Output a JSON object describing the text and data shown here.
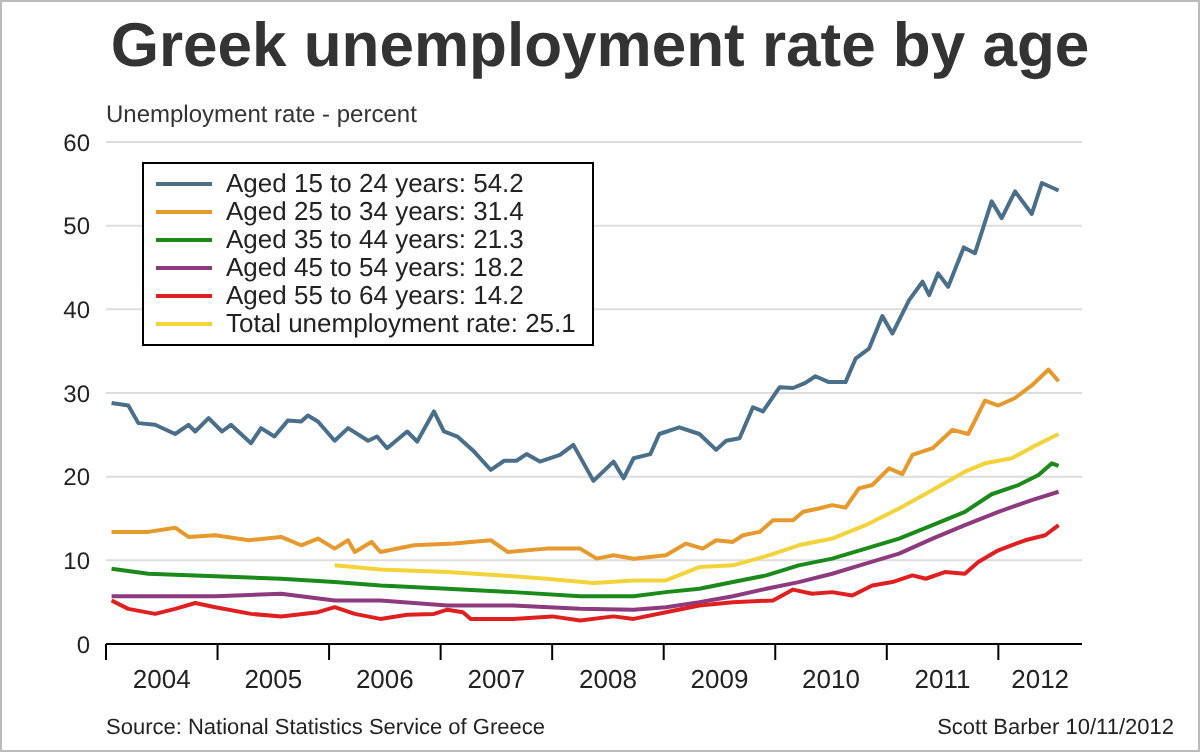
{
  "chart_data": {
    "type": "line",
    "title": "Greek unemployment rate by age",
    "ylabel": "Unemployment rate - percent",
    "xlim": [
      2004,
      2012.75
    ],
    "xticks": [
      {
        "value": 2004,
        "label": null
      },
      {
        "value": 2005,
        "label": null
      },
      {
        "value": 2006,
        "label": null
      },
      {
        "value": 2007,
        "label": null
      },
      {
        "value": 2008,
        "label": null
      },
      {
        "value": 2009,
        "label": null
      },
      {
        "value": 2010,
        "label": null
      },
      {
        "value": 2011,
        "label": null
      },
      {
        "value": 2012,
        "label": null
      },
      {
        "value": 2004.5,
        "label": "2004"
      },
      {
        "value": 2005.5,
        "label": "2005"
      },
      {
        "value": 2006.5,
        "label": "2006"
      },
      {
        "value": 2007.5,
        "label": "2007"
      },
      {
        "value": 2008.5,
        "label": "2008"
      },
      {
        "value": 2009.5,
        "label": "2009"
      },
      {
        "value": 2010.5,
        "label": "2010"
      },
      {
        "value": 2011.5,
        "label": "2011"
      },
      {
        "value": 2012.375,
        "label": "2012"
      }
    ],
    "ylim": [
      0,
      60
    ],
    "yticks": [
      0,
      10,
      20,
      30,
      40,
      50,
      60
    ],
    "grid": "y",
    "legend": "top left",
    "marker": "none",
    "line_style": "solid",
    "series": [
      {
        "name": "Aged 15 to 24 years: 54.2",
        "color": "#4a6f8a",
        "x": [
          2004.05,
          2004.2,
          2004.29,
          2004.44,
          2004.62,
          2004.74,
          2004.8,
          2004.92,
          2005.04,
          2005.12,
          2005.3,
          2005.39,
          2005.51,
          2005.63,
          2005.75,
          2005.81,
          2005.9,
          2006.05,
          2006.17,
          2006.35,
          2006.43,
          2006.52,
          2006.7,
          2006.79,
          2006.94,
          2007.03,
          2007.15,
          2007.3,
          2007.45,
          2007.57,
          2007.68,
          2007.77,
          2007.89,
          2008.07,
          2008.19,
          2008.37,
          2008.55,
          2008.64,
          2008.73,
          2008.88,
          2008.96,
          2009.14,
          2009.32,
          2009.47,
          2009.56,
          2009.68,
          2009.8,
          2009.89,
          2010.04,
          2010.16,
          2010.27,
          2010.36,
          2010.48,
          2010.63,
          2010.72,
          2010.84,
          2010.96,
          2011.05,
          2011.2,
          2011.32,
          2011.38,
          2011.46,
          2011.55,
          2011.69,
          2011.79,
          2011.94,
          2012.03,
          2012.15,
          2012.3,
          2012.39,
          2012.54
        ],
        "values": [
          28.8,
          28.5,
          26.4,
          26.2,
          25.1,
          26.2,
          25.4,
          27.0,
          25.4,
          26.2,
          24.0,
          25.8,
          24.8,
          26.7,
          26.6,
          27.3,
          26.6,
          24.3,
          25.8,
          24.3,
          24.8,
          23.4,
          25.4,
          24.2,
          27.8,
          25.4,
          24.8,
          23.0,
          20.8,
          21.9,
          21.9,
          22.7,
          21.8,
          22.6,
          23.8,
          19.5,
          21.8,
          19.8,
          22.2,
          22.7,
          25.1,
          25.9,
          25.1,
          23.2,
          24.3,
          24.6,
          28.3,
          27.8,
          30.7,
          30.6,
          31.2,
          32.0,
          31.3,
          31.3,
          34.1,
          35.3,
          39.2,
          37.1,
          41.1,
          43.3,
          41.7,
          44.3,
          42.7,
          47.4,
          46.7,
          52.9,
          50.9,
          54.1,
          51.4,
          55.1,
          54.2
        ]
      },
      {
        "name": "Aged 25 to 34 years: 31.4",
        "color": "#e69a2e",
        "x": [
          2004.05,
          2004.38,
          2004.62,
          2004.74,
          2004.98,
          2005.28,
          2005.57,
          2005.75,
          2005.9,
          2006.05,
          2006.17,
          2006.23,
          2006.38,
          2006.46,
          2006.76,
          2007.12,
          2007.45,
          2007.6,
          2007.95,
          2008.25,
          2008.4,
          2008.55,
          2008.73,
          2009.02,
          2009.2,
          2009.35,
          2009.47,
          2009.62,
          2009.71,
          2009.86,
          2009.98,
          2010.16,
          2010.25,
          2010.39,
          2010.51,
          2010.63,
          2010.75,
          2010.87,
          2011.02,
          2011.14,
          2011.23,
          2011.41,
          2011.59,
          2011.73,
          2011.88,
          2012.0,
          2012.15,
          2012.3,
          2012.45,
          2012.54
        ],
        "values": [
          13.4,
          13.4,
          13.9,
          12.8,
          13.0,
          12.4,
          12.8,
          11.8,
          12.6,
          11.4,
          12.4,
          11.0,
          12.2,
          11.0,
          11.8,
          12.0,
          12.4,
          11.0,
          11.4,
          11.4,
          10.2,
          10.6,
          10.2,
          10.6,
          12.0,
          11.4,
          12.4,
          12.2,
          13.0,
          13.4,
          14.8,
          14.8,
          15.8,
          16.2,
          16.6,
          16.3,
          18.6,
          19.0,
          21.0,
          20.3,
          22.6,
          23.4,
          25.6,
          25.1,
          29.1,
          28.5,
          29.4,
          30.9,
          32.8,
          31.4
        ]
      },
      {
        "name": "Aged 35 to 44 years: 21.3",
        "color": "#1a8a1a",
        "x": [
          2004.05,
          2004.38,
          2004.98,
          2005.57,
          2006.05,
          2006.46,
          2007.06,
          2007.65,
          2008.25,
          2008.73,
          2009.02,
          2009.32,
          2009.62,
          2009.92,
          2010.21,
          2010.51,
          2010.81,
          2011.11,
          2011.41,
          2011.7,
          2011.94,
          2012.18,
          2012.36,
          2012.48,
          2012.54
        ],
        "values": [
          9.0,
          8.4,
          8.1,
          7.8,
          7.4,
          7.0,
          6.6,
          6.2,
          5.7,
          5.7,
          6.2,
          6.6,
          7.4,
          8.2,
          9.4,
          10.2,
          11.4,
          12.6,
          14.2,
          15.8,
          17.9,
          19.0,
          20.2,
          21.6,
          21.3
        ]
      },
      {
        "name": "Aged 45 to 54 years: 18.2",
        "color": "#8e3a7e",
        "x": [
          2004.05,
          2004.98,
          2005.57,
          2006.05,
          2006.46,
          2007.06,
          2007.65,
          2008.25,
          2008.73,
          2009.02,
          2009.32,
          2009.62,
          2009.92,
          2010.21,
          2010.51,
          2010.81,
          2011.11,
          2011.41,
          2011.7,
          2012.0,
          2012.3,
          2012.54
        ],
        "values": [
          5.7,
          5.7,
          6.0,
          5.2,
          5.2,
          4.6,
          4.6,
          4.2,
          4.1,
          4.4,
          5.0,
          5.7,
          6.6,
          7.4,
          8.4,
          9.6,
          10.8,
          12.6,
          14.2,
          15.8,
          17.2,
          18.2
        ]
      },
      {
        "name": "Aged 55 to 64 years: 14.2",
        "color": "#e02020",
        "x": [
          2004.05,
          2004.2,
          2004.44,
          2004.62,
          2004.8,
          2004.98,
          2005.3,
          2005.57,
          2005.9,
          2006.05,
          2006.23,
          2006.46,
          2006.7,
          2006.94,
          2007.06,
          2007.2,
          2007.27,
          2007.65,
          2008.0,
          2008.25,
          2008.55,
          2008.73,
          2009.02,
          2009.32,
          2009.62,
          2009.98,
          2010.16,
          2010.33,
          2010.51,
          2010.69,
          2010.87,
          2011.05,
          2011.23,
          2011.35,
          2011.52,
          2011.7,
          2011.82,
          2012.0,
          2012.24,
          2012.42,
          2012.54
        ],
        "values": [
          5.2,
          4.2,
          3.6,
          4.2,
          4.9,
          4.4,
          3.6,
          3.3,
          3.8,
          4.4,
          3.6,
          3.0,
          3.5,
          3.6,
          4.1,
          3.8,
          3.0,
          3.0,
          3.3,
          2.8,
          3.3,
          3.0,
          3.8,
          4.6,
          5.0,
          5.2,
          6.5,
          6.0,
          6.2,
          5.8,
          7.0,
          7.4,
          8.2,
          7.8,
          8.6,
          8.4,
          9.8,
          11.2,
          12.4,
          13.0,
          14.2
        ]
      },
      {
        "name": "Total unemployment rate: 25.1",
        "color": "#f2d33a",
        "x": [
          2006.05,
          2006.46,
          2007.06,
          2007.65,
          2007.95,
          2008.37,
          2008.73,
          2009.02,
          2009.32,
          2009.62,
          2009.92,
          2010.21,
          2010.51,
          2010.81,
          2011.11,
          2011.41,
          2011.7,
          2011.88,
          2012.12,
          2012.3,
          2012.54
        ],
        "values": [
          9.4,
          8.9,
          8.6,
          8.1,
          7.8,
          7.3,
          7.6,
          7.6,
          9.2,
          9.4,
          10.5,
          11.8,
          12.6,
          14.2,
          16.2,
          18.4,
          20.6,
          21.6,
          22.2,
          23.5,
          25.1
        ]
      }
    ],
    "annotations": [
      "Source: National Statistics Service of Greece",
      "Scott Barber 10/11/2012"
    ]
  }
}
